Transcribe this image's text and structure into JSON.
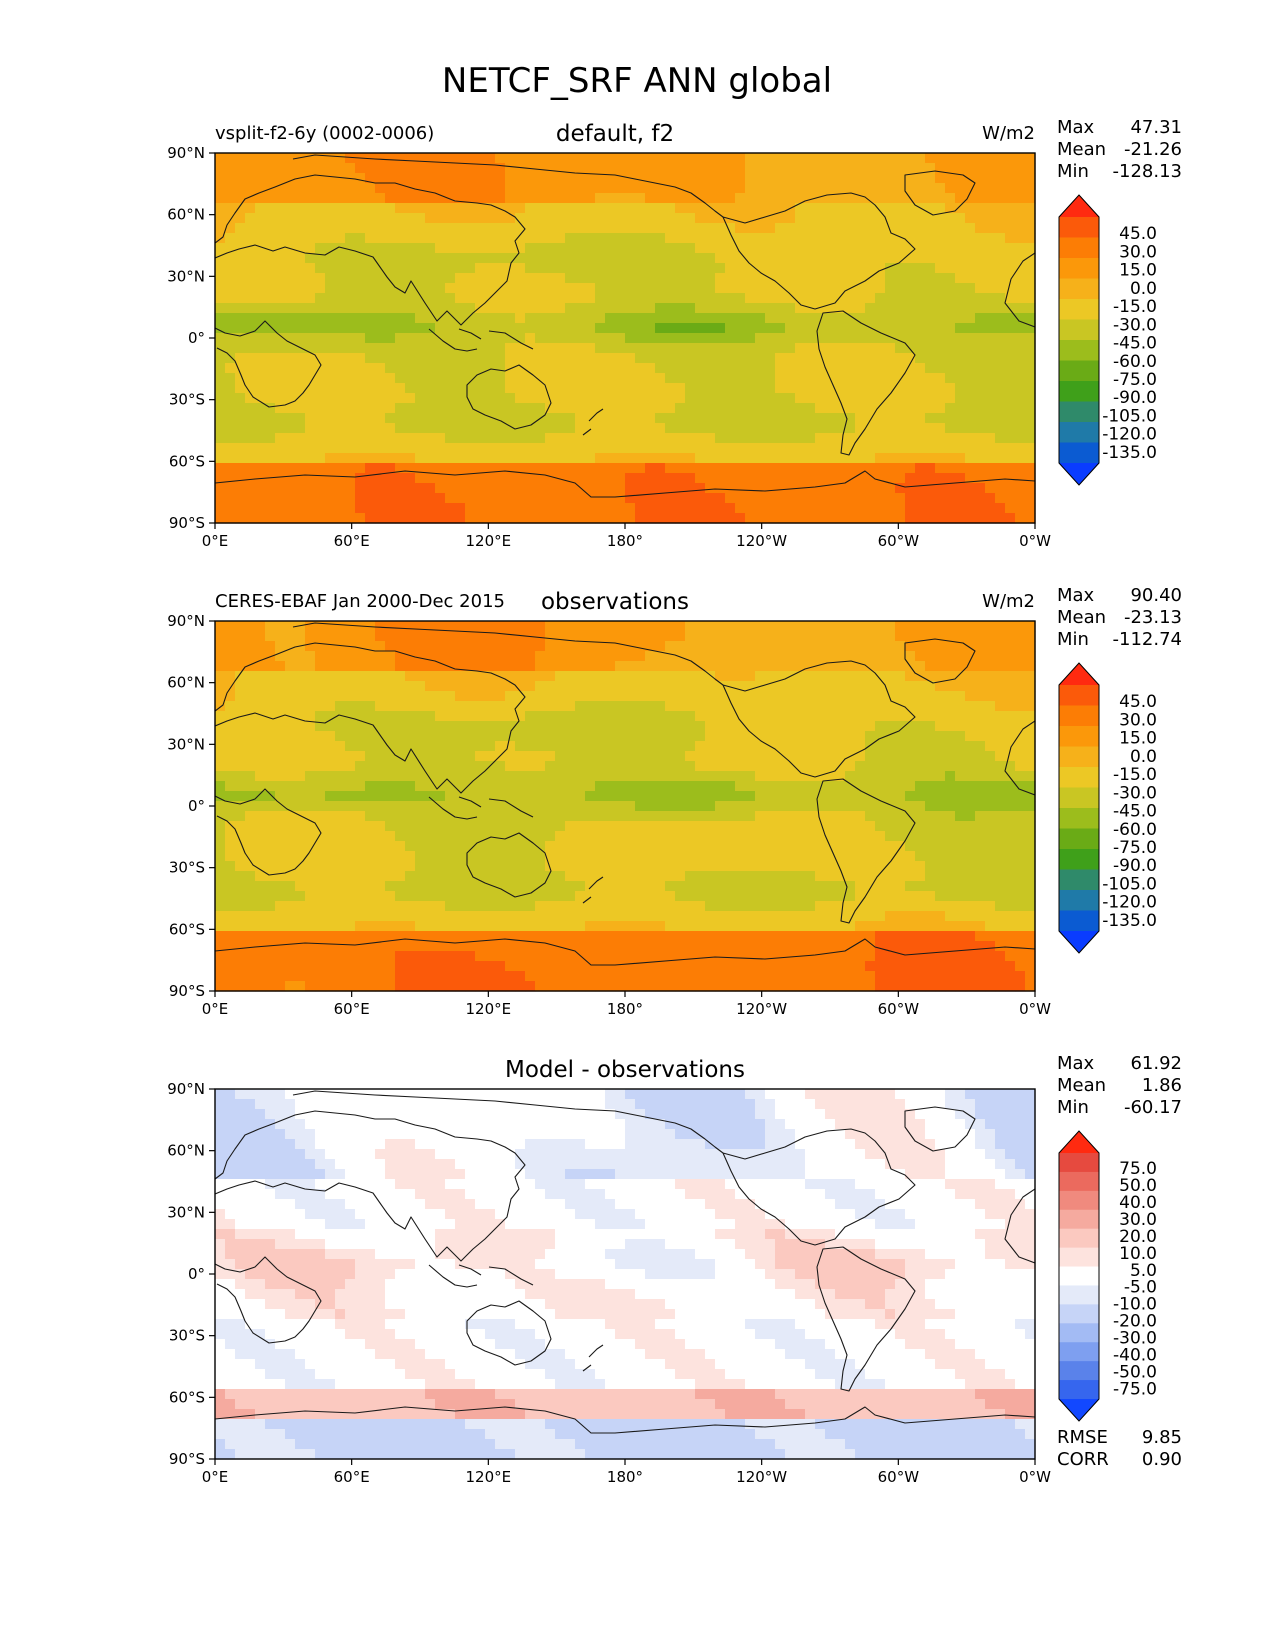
{
  "figure_title": "NETCF_SRF ANN global",
  "colors": {
    "field_levels": [
      "#0a3cff",
      "#0b5bd2",
      "#1f7aa8",
      "#2f8a6a",
      "#3fa01a",
      "#6aab16",
      "#9cbd1c",
      "#c9c623",
      "#ecc825",
      "#f6b11a",
      "#fb980a",
      "#fc7d05",
      "#fb5a0a",
      "#ff2a10"
    ],
    "diff_levels": [
      "#1248ff",
      "#3666ee",
      "#5a82ea",
      "#7e9ff0",
      "#a3bbf4",
      "#c6d4f7",
      "#e4eaf9",
      "#ffffff",
      "#fde3de",
      "#fbc9c0",
      "#f5aa9f",
      "#f08a7e",
      "#eb6a5e",
      "#e64a3f",
      "#ff2a10"
    ]
  },
  "chart_data": [
    {
      "type": "heatmap",
      "name": "default, f2",
      "title": "default, f2",
      "subtitle_left": "vsplit-f2-6y (0002-0006)",
      "units": "W/m2",
      "x_ticks": [
        "0°E",
        "60°E",
        "120°E",
        "180°",
        "120°W",
        "60°W",
        "0°W"
      ],
      "y_ticks": [
        "90°N",
        "60°N",
        "30°N",
        "0°",
        "30°S",
        "60°S",
        "90°S"
      ],
      "xlim": [
        0,
        360
      ],
      "ylim": [
        -90,
        90
      ],
      "stats": [
        {
          "label": "Max",
          "value": "47.31"
        },
        {
          "label": "Mean",
          "value": "-21.26"
        },
        {
          "label": "Min",
          "value": "-128.13"
        }
      ],
      "colorbar_levels": [
        "45.0",
        "30.0",
        "15.0",
        "0.0",
        "-15.0",
        "-30.0",
        "-45.0",
        "-60.0",
        "-75.0",
        "-90.0",
        "-105.0",
        "-120.0",
        "-135.0"
      ],
      "palette": "field"
    },
    {
      "type": "heatmap",
      "name": "observations",
      "title": "observations",
      "subtitle_left": "CERES-EBAF Jan 2000-Dec 2015",
      "units": "W/m2",
      "x_ticks": [
        "0°E",
        "60°E",
        "120°E",
        "180°",
        "120°W",
        "60°W",
        "0°W"
      ],
      "y_ticks": [
        "90°N",
        "60°N",
        "30°N",
        "0°",
        "30°S",
        "60°S",
        "90°S"
      ],
      "xlim": [
        0,
        360
      ],
      "ylim": [
        -90,
        90
      ],
      "stats": [
        {
          "label": "Max",
          "value": "90.40"
        },
        {
          "label": "Mean",
          "value": "-23.13"
        },
        {
          "label": "Min",
          "value": "-112.74"
        }
      ],
      "colorbar_levels": [
        "45.0",
        "30.0",
        "15.0",
        "0.0",
        "-15.0",
        "-30.0",
        "-45.0",
        "-60.0",
        "-75.0",
        "-90.0",
        "-105.0",
        "-120.0",
        "-135.0"
      ],
      "palette": "field"
    },
    {
      "type": "heatmap",
      "name": "Model - observations",
      "title": "Model - observations",
      "subtitle_left": "",
      "units": "",
      "x_ticks": [
        "0°E",
        "60°E",
        "120°E",
        "180°",
        "120°W",
        "60°W",
        "0°W"
      ],
      "y_ticks": [
        "90°N",
        "60°N",
        "30°N",
        "0°",
        "30°S",
        "60°S",
        "90°S"
      ],
      "xlim": [
        0,
        360
      ],
      "ylim": [
        -90,
        90
      ],
      "stats": [
        {
          "label": "Max",
          "value": "61.92"
        },
        {
          "label": "Mean",
          "value": "1.86"
        },
        {
          "label": "Min",
          "value": "-60.17"
        }
      ],
      "colorbar_levels": [
        "75.0",
        "50.0",
        "40.0",
        "30.0",
        "20.0",
        "10.0",
        "5.0",
        "-5.0",
        "-10.0",
        "-20.0",
        "-30.0",
        "-40.0",
        "-50.0",
        "-75.0"
      ],
      "palette": "diff",
      "extra_stats": [
        {
          "label": "RMSE",
          "value": "9.85"
        },
        {
          "label": "CORR",
          "value": "0.90"
        }
      ]
    }
  ]
}
